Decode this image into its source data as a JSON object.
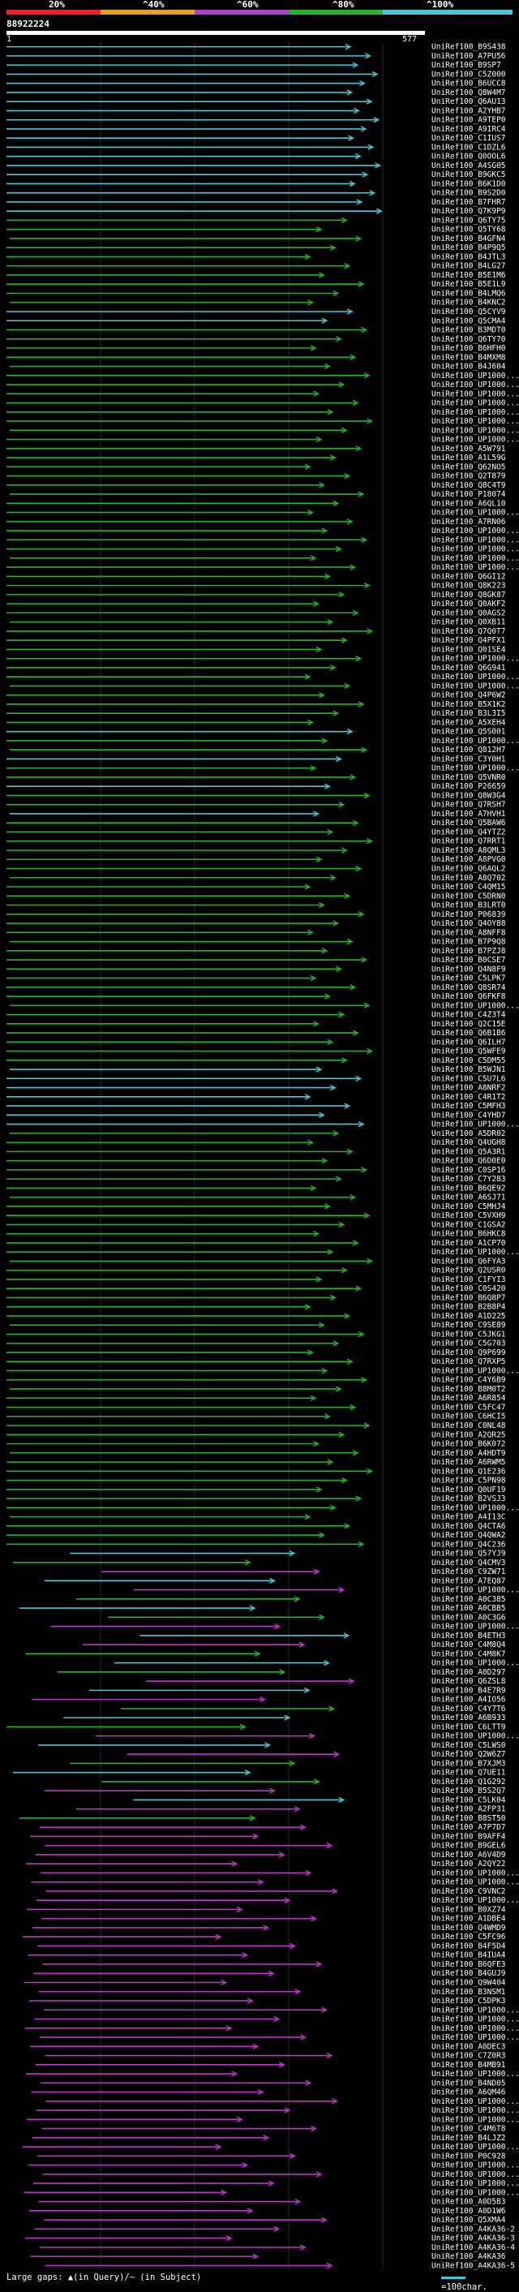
{
  "legend": {
    "labels": [
      "20%",
      "^40%",
      "^60%",
      "^80%",
      "^100%"
    ],
    "colors": [
      "#e8222a",
      "#e8a02a",
      "#b041c9",
      "#27b22b",
      "#4cc6d4"
    ]
  },
  "query": {
    "id": "88922224",
    "start": "1",
    "end": "577"
  },
  "hit_color_names": [
    "cyan",
    "green",
    "magenta"
  ],
  "colors": {
    "cyan": "#4cc6d4",
    "green": "#27b22b",
    "magenta": "#c035c8"
  },
  "hit_ids": [
    "UniRef100_B9S438",
    "UniRef100_A7PU56",
    "UniRef100_B9SP7",
    "UniRef100_C5Z000",
    "UniRef100_B6UCC8",
    "UniRef100_Q8W4M7",
    "UniRef100_Q6AU13",
    "UniRef100_A2YHB7",
    "UniRef100_A9TEP0",
    "UniRef100_A9IRC4",
    "UniRef100_C1IUS7",
    "UniRef100_C1DZL6",
    "UniRef100_Q0OOL6",
    "UniRef100_A4SG05",
    "UniRef100_B9GKC5",
    "UniRef100_B6K1D0",
    "UniRef100_B9S2D0",
    "UniRef100_B7FHR7",
    "UniRef100_Q7K9P9",
    "UniRef100_Q6TY75",
    "UniRef100_Q5TY68",
    "UniRef100_B4GFN4",
    "UniRef100_B4P9Q5",
    "UniRef100_B4JTL3",
    "UniRef100_B4LG27",
    "UniRef100_B5E1M6",
    "UniRef100_B5E1L9",
    "UniRef100_B4LMQ6",
    "UniRef100_B4KNC2",
    "UniRef100_Q5CYV9",
    "UniRef100_Q5CMA4",
    "UniRef100_B3MDT0",
    "UniRef100_Q6TY70",
    "UniRef100_B6HFH0",
    "UniRef100_B4MXM8",
    "UniRef100_B4J604",
    "UniRef100_UP1000...",
    "UniRef100_UP1000...",
    "UniRef100_UP1000...",
    "UniRef100_UP1000...",
    "UniRef100_UP1000...",
    "UniRef100_UP1000...",
    "UniRef100_UP1000...",
    "UniRef100_UP1000...",
    "UniRef100_A5W791",
    "UniRef100_A1L59G",
    "UniRef100_Q62NO5",
    "UniRef100_Q2T879",
    "UniRef100_Q8C4T9",
    "UniRef100_P18074",
    "UniRef100_A6QL10",
    "UniRef100_UP1000...",
    "UniRef100_A7RN06",
    "UniRef100_UP1000...",
    "UniRef100_UP1000...",
    "UniRef100_UP1000...",
    "UniRef100_UP1000...",
    "UniRef100_UP1000...",
    "UniRef100_Q6GI12",
    "UniRef100_Q8K223",
    "UniRef100_Q8GK87",
    "UniRef100_Q0AKF2",
    "UniRef100_Q0AGS2",
    "UniRef100_Q0XB11",
    "UniRef100_Q7Q0T7",
    "UniRef100_Q4PFX1",
    "UniRef100_Q01SE4",
    "UniRef100_UP1000...",
    "UniRef100_Q6G941",
    "UniRef100_UP1000...",
    "UniRef100_UP1000...",
    "UniRef100_Q4P6W2",
    "UniRef100_B5X1K2",
    "UniRef100_B3L3I5",
    "UniRef100_A5XEH4",
    "UniRef100_Q5S001",
    "UniRef100_UP1000...",
    "UniRef100_Q812H7",
    "UniRef100_C3Y0H1",
    "UniRef100_UP1000...",
    "UniRef100_Q5VNR0",
    "UniRef100_P26659",
    "UniRef100_Q8W3G4",
    "UniRef100_Q7RSH7",
    "UniRef100_A7HVH1",
    "UniRef100_Q5BAW6",
    "UniRef100_Q4YTZ2",
    "UniRef100_Q7RRT1",
    "UniRef100_A8QML3",
    "UniRef100_A8PVG0",
    "UniRef100_Q6AQL2",
    "UniRef100_A8Q702",
    "UniRef100_C4QM15",
    "UniRef100_C5DRN0",
    "UniRef100_B3LRT0",
    "UniRef100_P06839",
    "UniRef100_Q4OY88",
    "UniRef100_A8NFF8",
    "UniRef100_B7P9Q8",
    "UniRef100_B7PZJ8",
    "UniRef100_B0CSE7",
    "UniRef100_Q4N8F9",
    "UniRef100_C5LPK7",
    "UniRef100_Q8SR74",
    "UniRef100_Q6FKF8",
    "UniRef100_UP1000...",
    "UniRef100_C4Z3T4",
    "UniRef100_Q2C15E",
    "UniRef100_Q6B1B6",
    "UniRef100_Q6ILH7",
    "UniRef100_Q5WFE9",
    "UniRef100_C5DM55",
    "UniRef100_B5WJN1",
    "UniRef100_C5U7L6",
    "UniRef100_A8NRF2",
    "UniRef100_C4R1T2",
    "UniRef100_C5MFH3",
    "UniRef100_C4YHD7",
    "UniRef100_UP1000...",
    "UniRef100_A5DR02",
    "UniRef100_Q4UGH8",
    "UniRef100_Q5A3R1",
    "UniRef100_Q6D0E0",
    "UniRef100_C0SP16",
    "UniRef100_C7Y283",
    "UniRef100_B6QE92",
    "UniRef100_A6SJ71",
    "UniRef100_C5MHJ4",
    "UniRef100_C5VXH9",
    "UniRef100_C1GSA2",
    "UniRef100_B6HKC8",
    "UniRef100_A1CP70",
    "UniRef100_UP1000...",
    "UniRef100_Q6FYA3",
    "UniRef100_Q2USR0",
    "UniRef100_C1FYI3",
    "UniRef100_C0S420",
    "UniRef100_B6Q8P7",
    "UniRef100_B2B8P4",
    "UniRef100_A1D225",
    "UniRef100_C9SE89",
    "UniRef100_C5JKG1",
    "UniRef100_C5G703",
    "UniRef100_Q9P699",
    "UniRef100_Q7RXP5",
    "UniRef100_UP1000...",
    "UniRef100_C4Y6B9",
    "UniRef100_B8M0T2",
    "UniRef100_A6R854",
    "UniRef100_C5FC47",
    "UniRef100_C6HCI5",
    "UniRef100_C0NL48",
    "UniRef100_A2QR25",
    "UniRef100_B6K072",
    "UniRef100_A4HDT9",
    "UniRef100_A6RWM5",
    "UniRef100_Q1E236",
    "UniRef100_C5PN98",
    "UniRef100_Q0UF19",
    "UniRef100_B2VSJ3",
    "UniRef100_UP1000...",
    "UniRef100_A4I13C",
    "UniRef100_Q4CTA6",
    "UniRef100_Q4QWA2",
    "UniRef100_Q4C236",
    "UniRef100_Q57YJ9",
    "UniRef100_Q4CMV3",
    "UniRef100_C9ZW71",
    "UniRef100_A7EQ87",
    "UniRef100_UP1000...",
    "UniRef100_A0C385",
    "UniRef100_A0CBB5",
    "UniRef100_A0C3G6",
    "UniRef100_UP1000...",
    "UniRef100_B4ETH3",
    "UniRef100_C4M8Q4",
    "UniRef100_C4M8K7",
    "UniRef100_UP1000...",
    "UniRef100_A0D297",
    "UniRef100_Q6ZSL8",
    "UniRef100_B4E7R9",
    "UniRef100_A4IO56",
    "UniRef100_C4Y7T6",
    "UniRef100_A6B933",
    "UniRef100_C6LTT9",
    "UniRef100_UP1000...",
    "UniRef100_C5LWS0",
    "UniRef100_Q2W6Z7",
    "UniRef100_B7XJM3",
    "UniRef100_Q7UE11",
    "UniRef100_Q1G292",
    "UniRef100_B5S2Q7",
    "UniRef100_C5LK04",
    "UniRef100_A2FP31",
    "UniRef100_B8ST50",
    "UniRef100_A7P7D7",
    "UniRef100_B9AFF4",
    "UniRef100_B9GEL6",
    "UniRef100_A6V4D9",
    "UniRef100_A2QY22",
    "UniRef100_UP1000...",
    "UniRef100_UP1000...",
    "UniRef100_C9VNC2",
    "UniRef100_UP1000...",
    "UniRef100_B0XZ74",
    "UniRef100_A1DBE4",
    "UniRef100_Q4WMD9",
    "UniRef100_C5FC96",
    "UniRef100_B4F5D4",
    "UniRef100_B4IUA4",
    "UniRef100_B6QFE3",
    "UniRef100_B4GUJ9",
    "UniRef100_Q9W404",
    "UniRef100_B3NSM1",
    "UniRef100_C5DPK3",
    "UniRef100_UP1000...",
    "UniRef100_UP1000...",
    "UniRef100_UP1000...",
    "UniRef100_UP1000...",
    "UniRef100_A0DEC3",
    "UniRef100_C7Z0R3",
    "UniRef100_B4MB91",
    "UniRef100_UP1000...",
    "UniRef100_B4ND05",
    "UniRef100_A6QM46",
    "UniRef100_UP1000...",
    "UniRef100_UP1000...",
    "UniRef100_UP1000...",
    "UniRef100_C4M6T8",
    "UniRef100_B4LJZ2",
    "UniRef100_UP1000...",
    "UniRef100_P0C928",
    "UniRef100_UP1000...",
    "UniRef100_UP1000...",
    "UniRef100_UP1000...",
    "UniRef100_UP1000...",
    "UniRef100_A0D5B3",
    "UniRef100_A0D1W6",
    "UniRef100_Q5XMA4",
    "UniRef100_A4KA36-2",
    "UniRef100_A4KA36-3",
    "UniRef100_A4KA36-4",
    "UniRef100_A4KA36",
    "UniRef100_A4KA36-5"
  ],
  "footer": {
    "text": "Large gaps: ▲(in Query)/~ (in Subject)",
    "scale_label": "=100char."
  }
}
